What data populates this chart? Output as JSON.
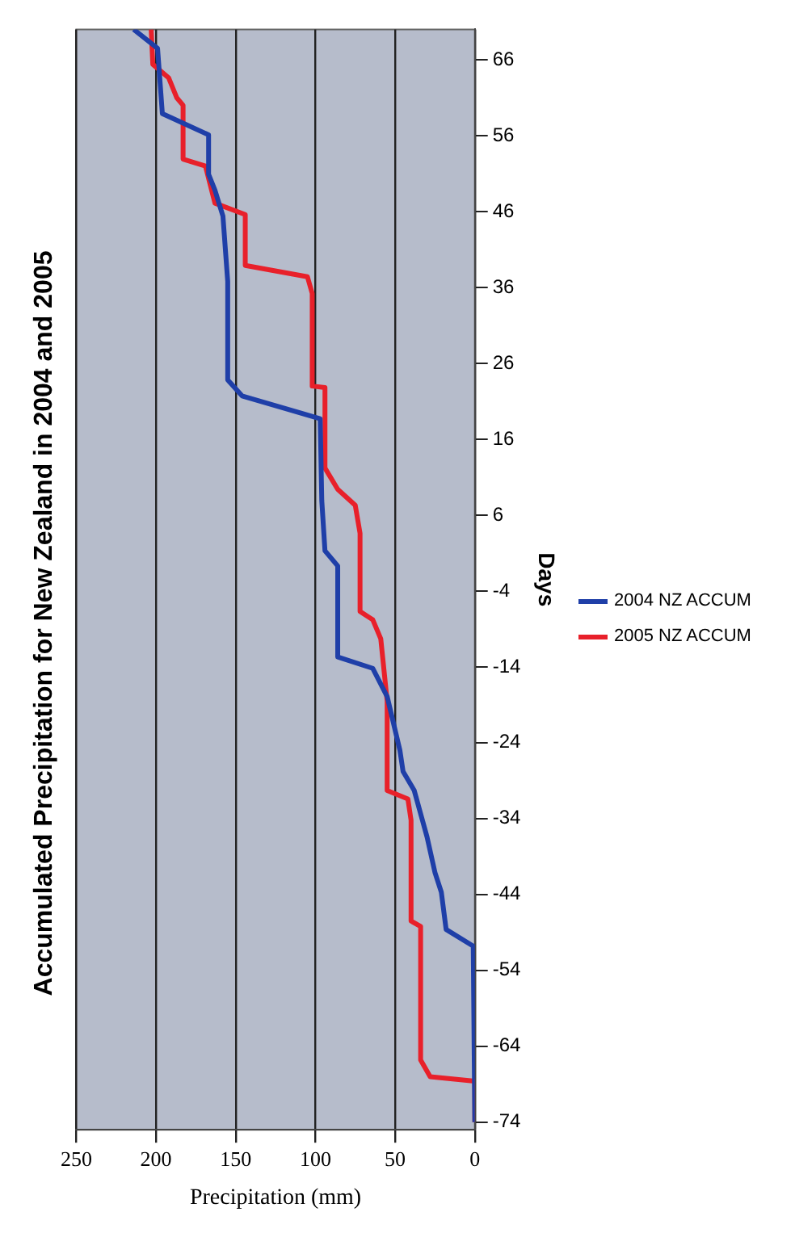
{
  "chart_data": {
    "type": "line",
    "title": "Accumulated Precipitation for New Zealand in 2004 and 2005",
    "xlabel": "Precipitation (mm)",
    "ylabel": "Days",
    "xlim": [
      250,
      0
    ],
    "xticks": [
      250,
      200,
      150,
      100,
      50,
      0
    ],
    "ylim": [
      -75,
      70
    ],
    "yticks": [
      -74,
      -64,
      -54,
      -44,
      -34,
      -24,
      -14,
      -4,
      6,
      16,
      26,
      36,
      46,
      56,
      66
    ],
    "grid": "x",
    "legend": "right",
    "marker": "none",
    "line_style": "solid",
    "series": [
      {
        "name": "2004 NZ ACCUM",
        "color": "#1f3fa8",
        "values": [
          -74,
          -50.8,
          -48.6,
          -43.7,
          -41.1,
          -36.4,
          -30.3,
          -27.8,
          -25,
          -17.9,
          -14.2,
          -12.7,
          -0.7,
          1.3,
          7.9,
          18.7,
          21.7,
          23.8,
          36.8,
          45.4,
          48.8,
          50.9,
          56.1,
          58.9,
          67.5,
          70
        ],
        "x": [
          0,
          1,
          18,
          21,
          25,
          30,
          38,
          45,
          47,
          55,
          64,
          86,
          86,
          94,
          96,
          97,
          146,
          155,
          155,
          158,
          163,
          167,
          167,
          196,
          199,
          214
        ]
      },
      {
        "name": "2005 NZ ACCUM",
        "color": "#e8202a",
        "values": [
          -74,
          -68.6,
          -68,
          -65.8,
          -48.2,
          -47.5,
          -34.2,
          -31.4,
          -30.3,
          -18.5,
          -10.3,
          -7.8,
          -6.7,
          3.6,
          7.3,
          9.4,
          12.2,
          22.8,
          23,
          35.2,
          37.4,
          38.9,
          45.6,
          47.1,
          52,
          52.9,
          60,
          61,
          63.6,
          65.4,
          70
        ],
        "x": [
          0,
          0,
          28,
          34,
          34,
          40,
          40,
          42,
          55,
          55,
          59,
          64,
          72,
          72,
          75,
          86,
          94,
          94,
          102,
          102,
          105,
          144,
          144,
          163,
          169,
          183,
          183,
          187,
          192,
          202,
          203
        ]
      }
    ]
  }
}
